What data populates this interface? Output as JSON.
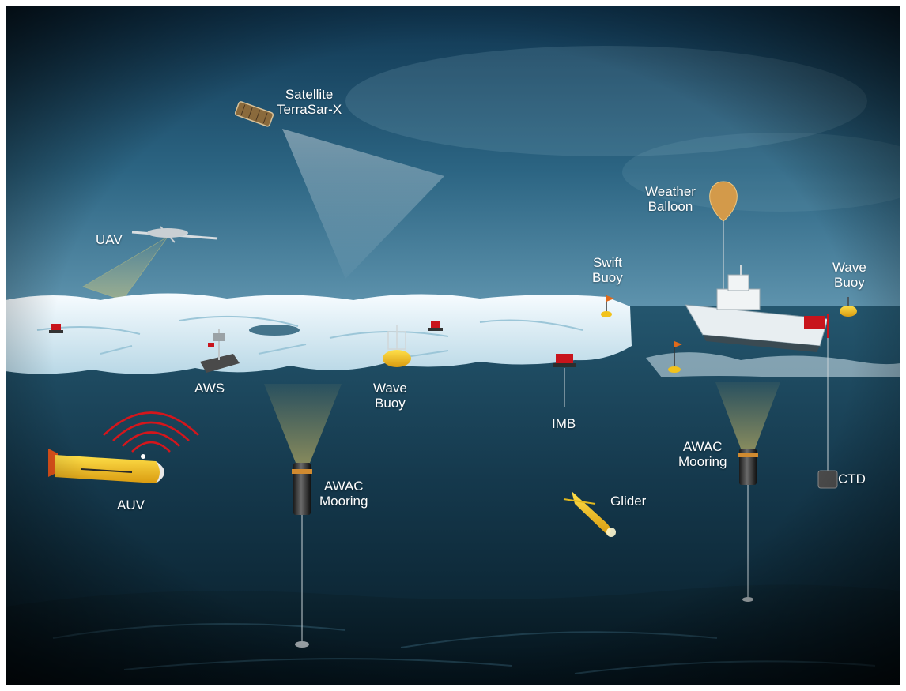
{
  "labels": {
    "satellite": {
      "line1": "Satellite",
      "line2": "TerraSar-X"
    },
    "uav": "UAV",
    "weather_balloon": {
      "line1": "Weather",
      "line2": "Balloon"
    },
    "swift_buoy": {
      "line1": "Swift",
      "line2": "Buoy"
    },
    "wave_buoy_right": {
      "line1": "Wave",
      "line2": "Buoy"
    },
    "aws": "AWS",
    "wave_buoy_center": {
      "line1": "Wave",
      "line2": "Buoy"
    },
    "imb": "IMB",
    "auv": "AUV",
    "awac_mooring_left": {
      "line1": "AWAC",
      "line2": "Mooring"
    },
    "awac_mooring_right": {
      "line1": "AWAC",
      "line2": "Mooring"
    },
    "glider": "Glider",
    "ctd": "CTD"
  },
  "colors": {
    "sky_top": "#0f3550",
    "sky_horizon": "#5e93ad",
    "ocean_top": "#24566e",
    "ocean_bottom": "#071b26",
    "ice": "#e7f3f8",
    "instrument_yellow": "#f2c21b",
    "buoy_red": "#c8141c",
    "signal_red": "#d4161c",
    "label": "#ffffff"
  }
}
